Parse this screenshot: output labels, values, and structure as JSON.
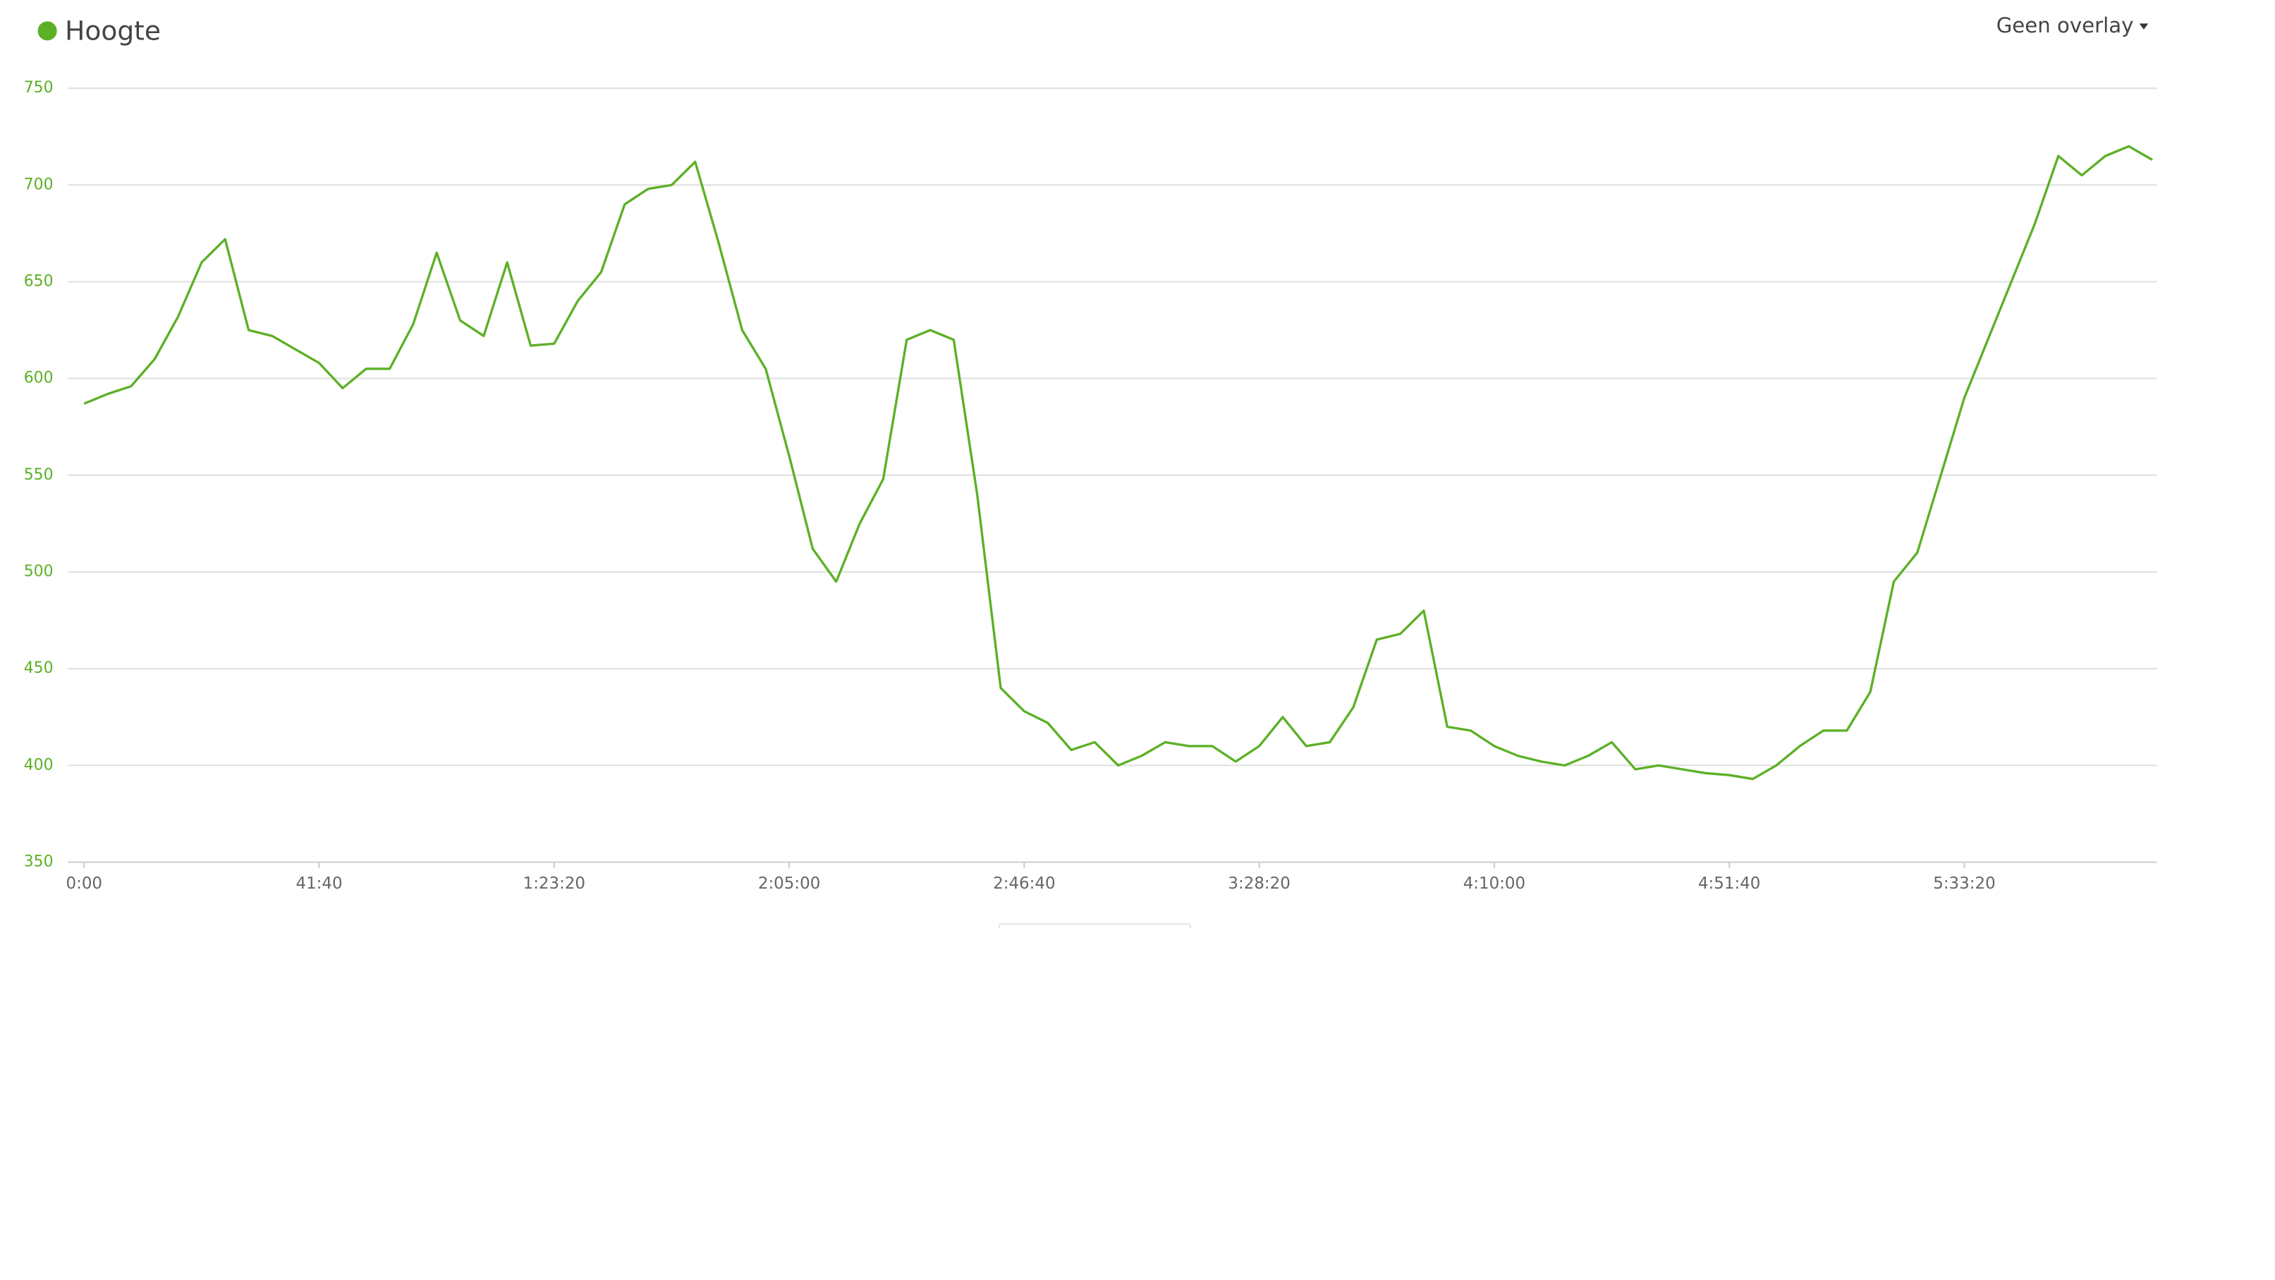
{
  "chart_data": {
    "type": "line",
    "overlay_menu": "Geen overlay",
    "x": [
      0,
      250,
      500,
      750,
      1000,
      1250,
      1500,
      1750,
      2000,
      2250,
      2500,
      2750,
      3000,
      3250,
      3500,
      3750,
      4000,
      4250,
      4500,
      4750,
      5000,
      5250,
      5500,
      5750,
      6000,
      6250,
      6500,
      6750,
      7000,
      7250,
      7500,
      7750,
      8000,
      8250,
      8500,
      8750,
      9000,
      9250,
      9500,
      9750,
      10000,
      10250,
      10500,
      10750,
      11000,
      11250,
      11500,
      11750,
      12000,
      12250,
      12500,
      12750,
      13000,
      13250,
      13500,
      13750,
      14000,
      14250,
      14500,
      14750,
      15000,
      15250,
      15500,
      15750,
      16000,
      16250,
      16500,
      16750,
      17000,
      17250,
      17500,
      17750,
      18000,
      18250,
      18500,
      18750,
      19000,
      19250,
      19500,
      19750,
      20000,
      20250,
      20500,
      20750,
      21000,
      21250,
      21500,
      21750,
      22000
    ],
    "series": [
      {
        "name": "Hoogte",
        "color": "#5cb026",
        "values": [
          587,
          592,
          596,
          610,
          632,
          660,
          672,
          625,
          622,
          615,
          608,
          595,
          605,
          605,
          628,
          665,
          630,
          622,
          660,
          617,
          618,
          640,
          655,
          690,
          698,
          700,
          712,
          670,
          625,
          605,
          560,
          512,
          495,
          525,
          548,
          620,
          625,
          620,
          540,
          440,
          428,
          422,
          408,
          412,
          400,
          405,
          412,
          410,
          410,
          402,
          410,
          425,
          410,
          412,
          430,
          465,
          468,
          480,
          420,
          418,
          410,
          405,
          402,
          400,
          405,
          412,
          398,
          400,
          398,
          396,
          395,
          393,
          400,
          410,
          418,
          418,
          438,
          495,
          510,
          550,
          590,
          620,
          650,
          680,
          715,
          705,
          715,
          720,
          713
        ]
      }
    ],
    "xlim": [
      0,
      22050
    ],
    "xticks": [
      {
        "value": 0,
        "label": "0:00"
      },
      {
        "value": 2500,
        "label": "41:40"
      },
      {
        "value": 5000,
        "label": "1:23:20"
      },
      {
        "value": 7500,
        "label": "2:05:00"
      },
      {
        "value": 10000,
        "label": "2:46:40"
      },
      {
        "value": 12500,
        "label": "3:28:20"
      },
      {
        "value": 15000,
        "label": "4:10:00"
      },
      {
        "value": 17500,
        "label": "4:51:40"
      },
      {
        "value": 20000,
        "label": "5:33:20"
      }
    ],
    "ylim": [
      350,
      750
    ],
    "yticks": [
      350,
      400,
      450,
      500,
      550,
      600,
      650,
      700,
      750
    ],
    "grid": true
  }
}
